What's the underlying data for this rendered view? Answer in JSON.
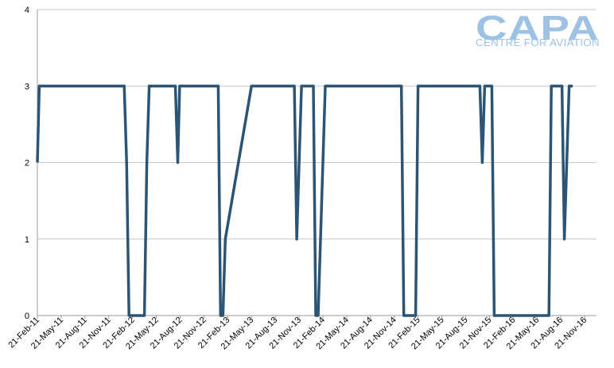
{
  "logo": {
    "main_text": "CAPA",
    "sub_text": "CENTRE FOR AVIATION",
    "color": "#9dc2e3"
  },
  "chart_data": {
    "type": "line",
    "title": "",
    "xlabel": "",
    "ylabel": "",
    "ylim": [
      0,
      4
    ],
    "yticks": [
      "0",
      "1",
      "2",
      "3",
      "4"
    ],
    "xticks": [
      "21-Feb-11",
      "21-May-11",
      "21-Aug-11",
      "21-Nov-11",
      "21-Feb-12",
      "21-May-12",
      "21-Aug-12",
      "21-Nov-12",
      "21-Feb-13",
      "21-May-13",
      "21-Aug-13",
      "21-Nov-13",
      "21-Feb-14",
      "21-May-14",
      "21-Aug-14",
      "21-Nov-14",
      "21-Feb-15",
      "21-May-15",
      "21-Aug-15",
      "21-Nov-15",
      "21-Feb-16",
      "21-May-16",
      "21-Aug-16",
      "21-Nov-16"
    ],
    "grid": true,
    "line_color": "#2b5475",
    "series": [
      {
        "x": [
          0,
          0.08,
          3.65,
          3.75,
          3.85,
          4.5,
          4.6,
          4.7,
          5.8,
          5.9,
          5.98,
          7.6,
          7.7,
          7.8,
          7.9,
          9.0,
          10.8,
          10.9,
          11.0,
          11.1,
          11.6,
          11.7,
          11.8,
          11.9,
          12.1,
          15.3,
          15.4,
          15.9,
          16.0,
          18.6,
          18.7,
          18.8,
          19.1,
          19.2,
          21.5,
          21.6,
          22.05,
          22.15,
          22.25,
          22.35,
          22.5
        ],
        "y": [
          2,
          3,
          3,
          2,
          0,
          0,
          2,
          3,
          3,
          2,
          3,
          3,
          0,
          0,
          1,
          3,
          3,
          1,
          2,
          3,
          3,
          0,
          0,
          1,
          3,
          3,
          0,
          0,
          3,
          3,
          2,
          3,
          3,
          0,
          0,
          3,
          3,
          1,
          2,
          3,
          3
        ]
      }
    ]
  }
}
